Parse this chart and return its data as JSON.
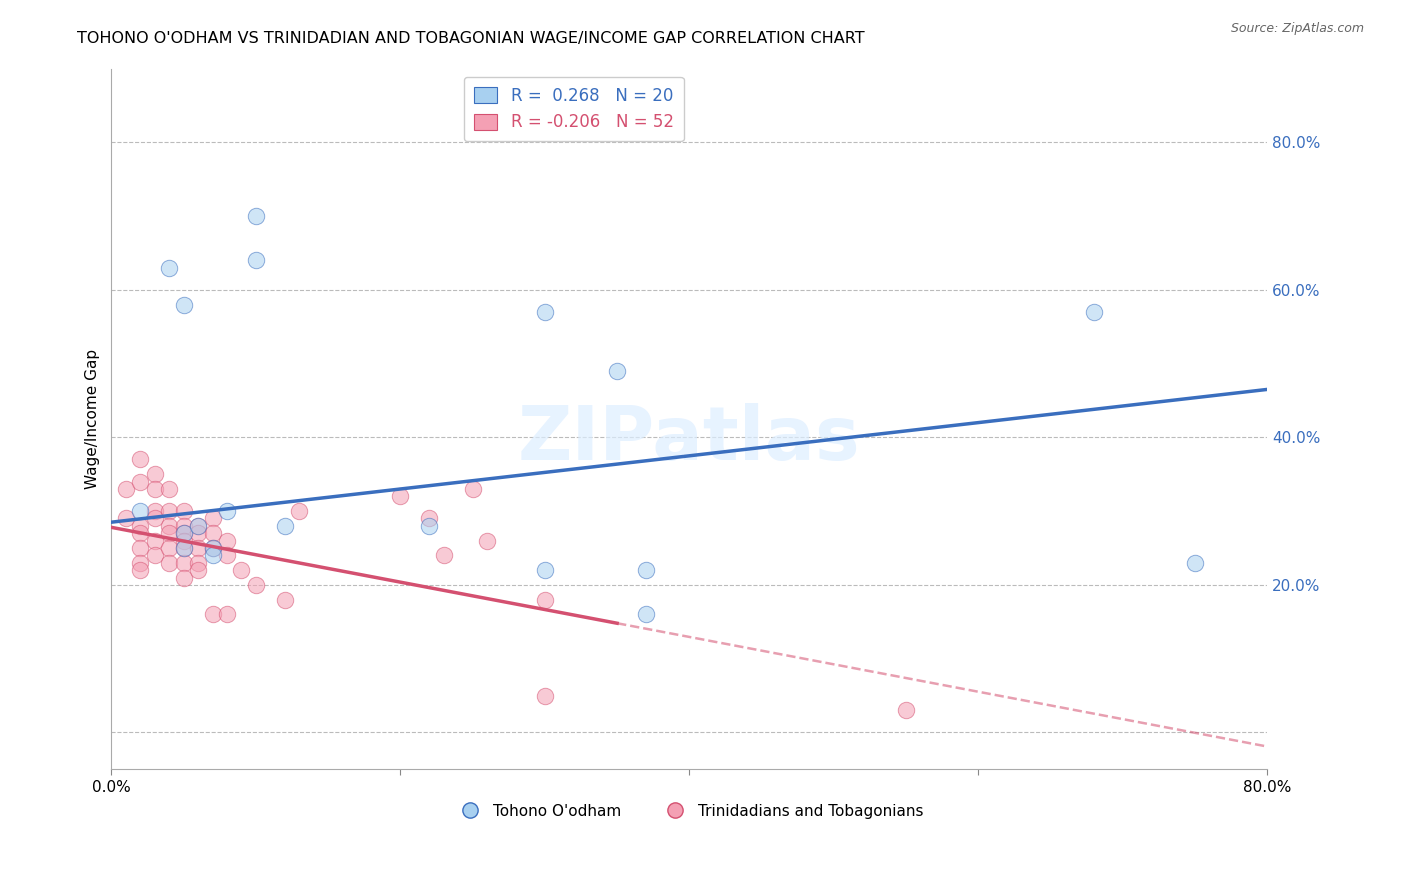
{
  "title": "TOHONO O'ODHAM VS TRINIDADIAN AND TOBAGONIAN WAGE/INCOME GAP CORRELATION CHART",
  "source": "Source: ZipAtlas.com",
  "ylabel": "Wage/Income Gap",
  "legend_label_blue": "Tohono O'odham",
  "legend_label_pink": "Trinidadians and Tobagonians",
  "legend_r_blue": "R =  0.268",
  "legend_n_blue": "N = 20",
  "legend_r_pink": "R = -0.206",
  "legend_n_pink": "N = 52",
  "xlim": [
    0.0,
    0.8
  ],
  "ylim": [
    -0.05,
    0.9
  ],
  "yticks": [
    0.0,
    0.2,
    0.4,
    0.6,
    0.8
  ],
  "ytick_labels": [
    "",
    "20.0%",
    "40.0%",
    "60.0%",
    "80.0%"
  ],
  "xticks": [
    0.0,
    0.2,
    0.4,
    0.6,
    0.8
  ],
  "xtick_labels": [
    "0.0%",
    "",
    "",
    "",
    "80.0%"
  ],
  "color_blue": "#A8D0F0",
  "color_pink": "#F4A0B4",
  "line_color_blue": "#3A6EBE",
  "line_color_pink": "#D45070",
  "watermark": "ZIPatlas",
  "blue_points_x": [
    0.02,
    0.04,
    0.05,
    0.05,
    0.05,
    0.06,
    0.07,
    0.07,
    0.08,
    0.1,
    0.1,
    0.12,
    0.22,
    0.3,
    0.3,
    0.35,
    0.37,
    0.37,
    0.68,
    0.75
  ],
  "blue_points_y": [
    0.3,
    0.63,
    0.58,
    0.27,
    0.25,
    0.28,
    0.25,
    0.24,
    0.3,
    0.64,
    0.7,
    0.28,
    0.28,
    0.57,
    0.22,
    0.49,
    0.22,
    0.16,
    0.57,
    0.23
  ],
  "pink_points_x": [
    0.01,
    0.01,
    0.02,
    0.02,
    0.02,
    0.02,
    0.02,
    0.02,
    0.02,
    0.03,
    0.03,
    0.03,
    0.03,
    0.03,
    0.03,
    0.04,
    0.04,
    0.04,
    0.04,
    0.04,
    0.04,
    0.05,
    0.05,
    0.05,
    0.05,
    0.05,
    0.05,
    0.05,
    0.06,
    0.06,
    0.06,
    0.06,
    0.06,
    0.07,
    0.07,
    0.07,
    0.07,
    0.08,
    0.08,
    0.08,
    0.09,
    0.1,
    0.12,
    0.13,
    0.2,
    0.22,
    0.23,
    0.25,
    0.26,
    0.3,
    0.3,
    0.55
  ],
  "pink_points_y": [
    0.33,
    0.29,
    0.37,
    0.34,
    0.28,
    0.27,
    0.25,
    0.23,
    0.22,
    0.35,
    0.33,
    0.3,
    0.29,
    0.26,
    0.24,
    0.33,
    0.3,
    0.28,
    0.27,
    0.25,
    0.23,
    0.3,
    0.28,
    0.27,
    0.26,
    0.25,
    0.23,
    0.21,
    0.28,
    0.27,
    0.25,
    0.23,
    0.22,
    0.29,
    0.27,
    0.25,
    0.16,
    0.26,
    0.24,
    0.16,
    0.22,
    0.2,
    0.18,
    0.3,
    0.32,
    0.29,
    0.24,
    0.33,
    0.26,
    0.18,
    0.05,
    0.03
  ],
  "blue_line_x0": 0.0,
  "blue_line_x1": 0.8,
  "blue_line_y0": 0.285,
  "blue_line_y1": 0.465,
  "pink_line_solid_x0": 0.0,
  "pink_line_solid_x1": 0.35,
  "pink_line_y0": 0.278,
  "pink_line_y1": 0.148,
  "pink_line_dash_x0": 0.35,
  "pink_line_dash_x1": 0.8,
  "marker_size": 140,
  "alpha_scatter": 0.55
}
